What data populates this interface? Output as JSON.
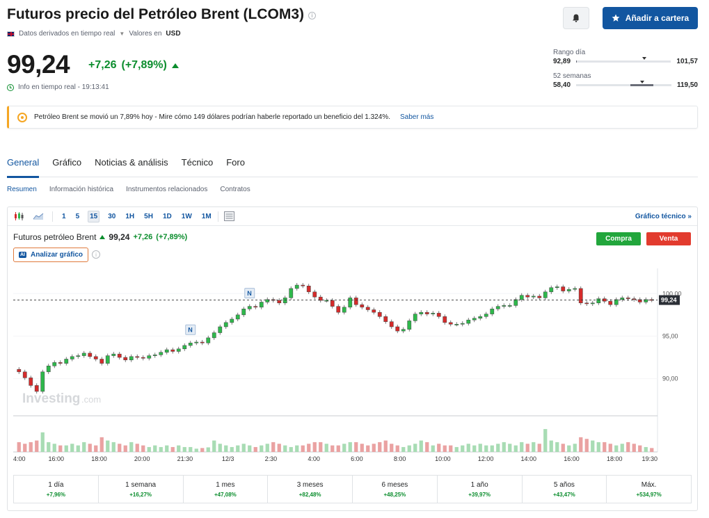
{
  "header": {
    "title": "Futuros precio del Petróleo Brent (LCOM3)",
    "data_type": "Datos derivados en tiempo real",
    "currency_label": "Valores en",
    "currency": "USD",
    "add_button": "Añadir a cartera"
  },
  "quote": {
    "price": "99,24",
    "change": "+7,26",
    "change_pct": "(+7,89%)",
    "realtime_label": "Info en tiempo real - 19:13:41"
  },
  "ranges": {
    "day_label": "Rango día",
    "day_low": "92,89",
    "day_high": "101,57",
    "week52_label": "52 semanas",
    "week52_low": "58,40",
    "week52_high": "119,50"
  },
  "banner": {
    "text": "Petróleo Brent se movió un 7,89% hoy - Mire cómo 149 dólares podrían haberle reportado un beneficio del 1.324%.",
    "link": "Saber más"
  },
  "tabs": [
    "General",
    "Gráfico",
    "Noticias & análisis",
    "Técnico",
    "Foro"
  ],
  "subtabs": [
    "Resumen",
    "Información histórica",
    "Instrumentos relacionados",
    "Contratos"
  ],
  "toolbar": {
    "intervals": [
      "1",
      "5",
      "15",
      "30",
      "1H",
      "5H",
      "1D",
      "1W",
      "1M"
    ],
    "selected": "15",
    "tech_link": "Gráfico técnico"
  },
  "chart_header": {
    "name": "Futuros petróleo Brent",
    "price": "99,24",
    "change": "+7,26",
    "change_pct": "(+7,89%)",
    "analyze": "Analizar gráfico",
    "ai_badge": "AI",
    "buy": "Compra",
    "sell": "Venta",
    "watermark": "Investing",
    "watermark_suffix": ".com",
    "news_marker": "N"
  },
  "chart_data": {
    "type": "candlestick",
    "y_ticks": [
      "100,00",
      "95,00",
      "90,00"
    ],
    "y_tick_values": [
      100,
      95,
      90
    ],
    "ylim": [
      85.8,
      102.8
    ],
    "last_price": 99.24,
    "last_price_label": "99,24",
    "x_labels": [
      "4:00",
      "16:00",
      "18:00",
      "20:00",
      "21:30",
      "12/3",
      "2:30",
      "4:00",
      "6:00",
      "8:00",
      "10:00",
      "12:00",
      "14:00",
      "16:00",
      "18:00",
      "19:30"
    ],
    "news_markers_at": [
      29,
      39
    ],
    "closes": [
      90.8,
      90.1,
      89.2,
      88.5,
      90.8,
      91.5,
      91.9,
      91.8,
      92.3,
      92.6,
      92.7,
      93.0,
      92.6,
      92.3,
      91.8,
      92.7,
      92.9,
      92.5,
      92.2,
      92.6,
      92.5,
      92.4,
      92.7,
      92.8,
      93.1,
      93.4,
      93.2,
      93.5,
      93.9,
      94.2,
      94.3,
      94.2,
      94.8,
      95.4,
      96.1,
      96.6,
      97.0,
      97.5,
      98.2,
      98.5,
      98.4,
      99.0,
      99.3,
      99.2,
      98.9,
      99.5,
      100.6,
      101.0,
      100.9,
      100.2,
      99.6,
      99.2,
      99.2,
      98.5,
      97.8,
      98.4,
      99.5,
      98.7,
      98.4,
      98.1,
      97.8,
      97.3,
      96.7,
      96.1,
      95.6,
      95.8,
      96.8,
      97.6,
      97.8,
      97.6,
      97.7,
      97.3,
      96.6,
      96.4,
      96.4,
      96.5,
      96.9,
      97.1,
      97.3,
      97.6,
      98.2,
      98.5,
      98.6,
      98.6,
      99.3,
      99.8,
      99.6,
      99.7,
      99.5,
      100.2,
      100.7,
      100.8,
      100.3,
      100.5,
      100.6,
      98.9,
      98.8,
      98.9,
      99.4,
      99.1,
      98.7,
      99.3,
      99.5,
      99.4,
      99.3,
      99.0,
      99.3,
      99.24
    ],
    "volumes": [
      0.3,
      0.25,
      0.3,
      0.35,
      0.6,
      0.3,
      0.25,
      0.2,
      0.2,
      0.25,
      0.2,
      0.3,
      0.25,
      0.2,
      0.45,
      0.35,
      0.3,
      0.25,
      0.2,
      0.3,
      0.25,
      0.2,
      0.15,
      0.2,
      0.15,
      0.2,
      0.15,
      0.2,
      0.15,
      0.15,
      0.1,
      0.12,
      0.14,
      0.35,
      0.25,
      0.2,
      0.15,
      0.2,
      0.25,
      0.2,
      0.15,
      0.2,
      0.25,
      0.3,
      0.25,
      0.2,
      0.15,
      0.2,
      0.2,
      0.25,
      0.3,
      0.3,
      0.25,
      0.2,
      0.2,
      0.25,
      0.3,
      0.3,
      0.25,
      0.2,
      0.25,
      0.3,
      0.35,
      0.25,
      0.2,
      0.15,
      0.2,
      0.25,
      0.35,
      0.3,
      0.2,
      0.25,
      0.2,
      0.2,
      0.15,
      0.2,
      0.25,
      0.2,
      0.25,
      0.2,
      0.2,
      0.25,
      0.3,
      0.25,
      0.2,
      0.3,
      0.25,
      0.3,
      0.25,
      0.7,
      0.35,
      0.3,
      0.25,
      0.2,
      0.25,
      0.45,
      0.4,
      0.35,
      0.3,
      0.3,
      0.25,
      0.2,
      0.25,
      0.3,
      0.25,
      0.2,
      0.15,
      0.12
    ]
  },
  "performance": [
    {
      "label": "1 día",
      "value": "+7,96%"
    },
    {
      "label": "1 semana",
      "value": "+16,27%"
    },
    {
      "label": "1 mes",
      "value": "+47,08%"
    },
    {
      "label": "3 meses",
      "value": "+82,48%"
    },
    {
      "label": "6 meses",
      "value": "+48,25%"
    },
    {
      "label": "1 año",
      "value": "+39,97%"
    },
    {
      "label": "5 años",
      "value": "+43,47%"
    },
    {
      "label": "Máx.",
      "value": "+534,97%"
    }
  ],
  "colors": {
    "up": "#2eb84b",
    "down": "#d52b2b",
    "accent": "#1256a0"
  }
}
